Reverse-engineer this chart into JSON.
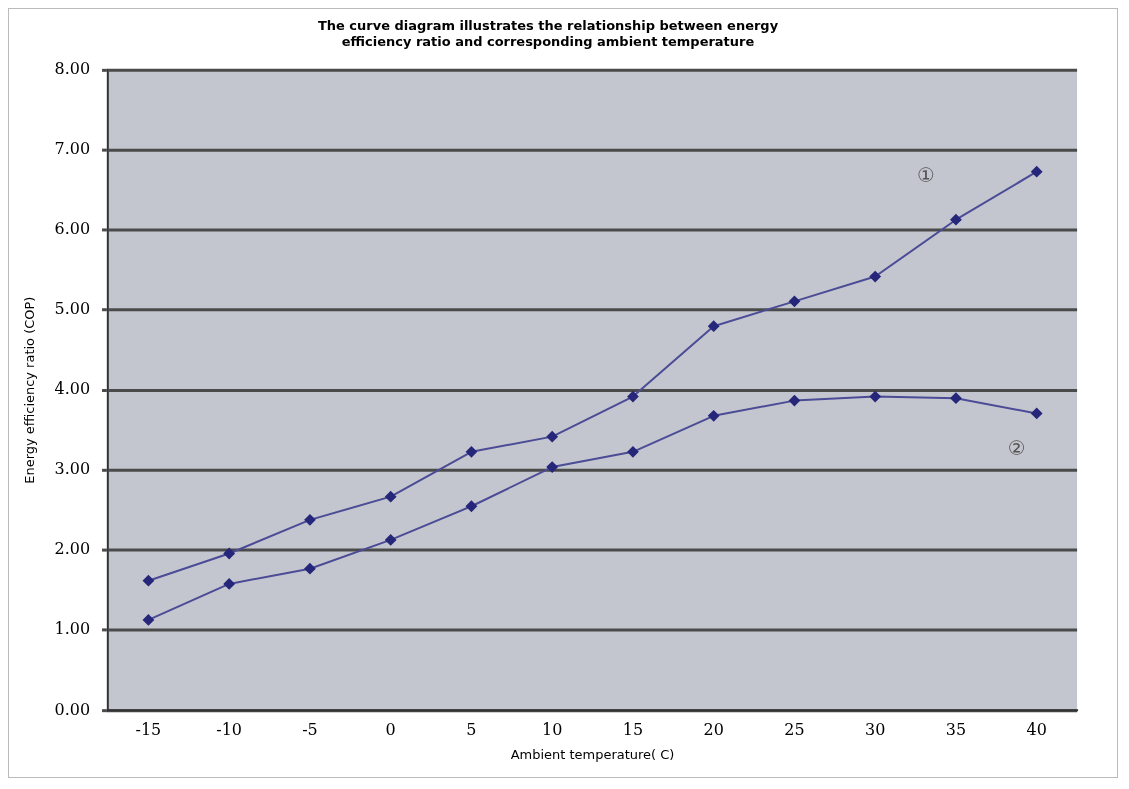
{
  "chart_data": {
    "type": "line",
    "title": "The curve diagram illustrates the relationship between energy efficiency ratio and corresponding ambient temperature",
    "xlabel": "Ambient temperature( C)",
    "ylabel": "Energy efficiency ratio (COP)",
    "categories": [
      "-15",
      "-10",
      "-5",
      "0",
      "5",
      "10",
      "15",
      "20",
      "25",
      "30",
      "35",
      "40"
    ],
    "series": [
      {
        "name": "①",
        "color": "#4b4b96",
        "values": [
          1.62,
          1.96,
          2.38,
          2.67,
          3.23,
          3.42,
          3.92,
          4.8,
          5.11,
          5.42,
          6.13,
          6.73
        ]
      },
      {
        "name": "②",
        "color": "#4b4b96",
        "values": [
          1.13,
          1.58,
          1.77,
          2.13,
          2.55,
          3.04,
          3.23,
          3.68,
          3.87,
          3.92,
          3.9,
          3.71
        ]
      }
    ],
    "ylim": [
      0,
      8
    ],
    "yticks": [
      {
        "value": 0,
        "label": "0.00"
      },
      {
        "value": 1,
        "label": "1.00"
      },
      {
        "value": 2,
        "label": "2.00"
      },
      {
        "value": 3,
        "label": "3.00"
      },
      {
        "value": 4,
        "label": "4.00"
      },
      {
        "value": 5,
        "label": "5.00"
      },
      {
        "value": 6,
        "label": "6.00"
      },
      {
        "value": 7,
        "label": "7.00"
      },
      {
        "value": 8,
        "label": "8.00"
      }
    ],
    "grid": "y",
    "legend": false,
    "marker": "diamond",
    "line_style": "solid"
  }
}
